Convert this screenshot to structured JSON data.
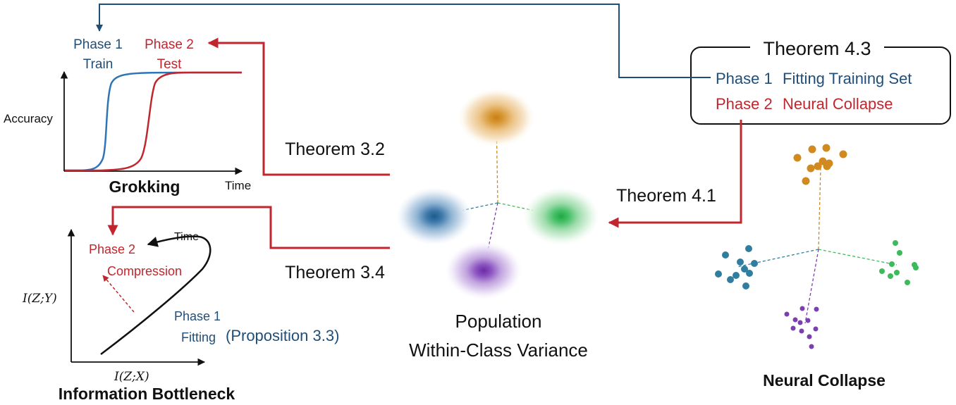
{
  "colors": {
    "blue": "#1f4e79",
    "red": "#c0262d",
    "curve_blue": "#2e75b6",
    "orange": "#d08a1f",
    "teal": "#2f7ea0",
    "green": "#3dbb5a",
    "purple": "#7a3fb0",
    "black": "#111111"
  },
  "theorem43": {
    "title": "Theorem 4.3",
    "phase1": "Phase 1",
    "phase1_desc": "Fitting Training Set",
    "phase2": "Phase 2",
    "phase2_desc": "Neural Collapse"
  },
  "connectors": {
    "t32": "Theorem 3.2",
    "t34": "Theorem 3.4",
    "t41": "Theorem 4.1"
  },
  "grokking": {
    "title": "Grokking",
    "ylabel": "Accuracy",
    "xlabel": "Time",
    "phase1_line1": "Phase 1",
    "phase1_line2": "Train",
    "phase2_line1": "Phase 2",
    "phase2_line2": "Test"
  },
  "ib": {
    "title": "Information Bottleneck",
    "ylabel": "I(Z;Y)",
    "xlabel": "I(Z;X)",
    "time_label": "Time",
    "phase2_line1": "Phase 2",
    "phase2_line2": "Compression",
    "phase1_line1": "Phase 1",
    "phase1_line2": "Fitting",
    "proposition": "(Proposition 3.3)"
  },
  "population": {
    "line1": "Population",
    "line2": "Within-Class Variance"
  },
  "neural_collapse": {
    "title": "Neural Collapse"
  }
}
